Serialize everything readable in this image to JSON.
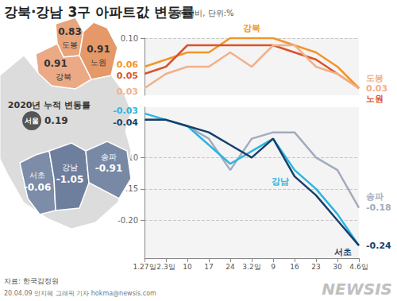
{
  "header": {
    "title": "강북·강남 3구 아파트값 변동률",
    "subtitle": "전주 대비, 단위:%"
  },
  "map": {
    "title": "2020년 누적 변동률",
    "city": {
      "name": "서울",
      "value": 0.19
    },
    "regions": [
      {
        "name": "도봉",
        "value": 0.83,
        "color": "#e9a47c"
      },
      {
        "name": "노원",
        "value": 0.91,
        "color": "#e59868"
      },
      {
        "name": "강북",
        "value": 0.91,
        "color": "#eba985"
      },
      {
        "name": "서초",
        "value": -0.06,
        "color": "#7d8ca8"
      },
      {
        "name": "강남",
        "value": -1.05,
        "color": "#6e7f9e"
      },
      {
        "name": "송파",
        "value": -0.91,
        "color": "#7889a6"
      }
    ]
  },
  "chart_data": [
    {
      "type": "line",
      "categories": [
        "1.27일",
        "2.3일",
        "10",
        "17",
        "24",
        "3.2일",
        "9",
        "16",
        "23",
        "30",
        "4.6일"
      ],
      "ylim": [
        0.02,
        0.1
      ],
      "yticks": [
        {
          "value": 0.1,
          "label": "0.10"
        }
      ],
      "grid": true,
      "tick_labels": "y",
      "series": [
        {
          "name": "강북",
          "color": "#f0962a",
          "values": [
            0.06,
            0.07,
            0.08,
            0.08,
            0.1,
            0.1,
            0.1,
            0.09,
            0.08,
            0.06,
            0.03
          ],
          "value_labels": [
            "0.06",
            null,
            null,
            null,
            null,
            null,
            null,
            null,
            null,
            null,
            null
          ]
        },
        {
          "name": "노원",
          "color": "#d9532a",
          "values": [
            0.05,
            0.06,
            0.09,
            0.09,
            0.09,
            0.09,
            0.09,
            0.08,
            0.07,
            0.05,
            0.03
          ],
          "value_labels": [
            "0.05",
            null,
            null,
            null,
            null,
            null,
            null,
            null,
            null,
            null,
            null
          ]
        },
        {
          "name": "도봉",
          "color": "#f2b08a",
          "values": [
            0.03,
            0.05,
            0.06,
            0.06,
            0.08,
            0.06,
            0.09,
            0.09,
            0.06,
            0.05,
            0.03
          ],
          "value_labels": [
            "0.03",
            null,
            null,
            null,
            null,
            null,
            null,
            null,
            null,
            null,
            "0.03"
          ]
        }
      ]
    },
    {
      "type": "line",
      "categories": [
        "1.27일",
        "2.3일",
        "10",
        "17",
        "24",
        "3.2일",
        "9",
        "16",
        "23",
        "30",
        "4.6일"
      ],
      "ylim": [
        -0.26,
        -0.02
      ],
      "yticks": [
        {
          "value": -0.2,
          "label": "-0.20"
        },
        -0.15,
        {
          "value": -0.1,
          "label": "-0.10"
        }
      ],
      "grid": true,
      "series": [
        {
          "name": "송파",
          "color": "#a3abbd",
          "values": [
            -0.04,
            -0.04,
            -0.05,
            -0.07,
            -0.12,
            -0.07,
            -0.06,
            -0.06,
            -0.1,
            -0.12,
            -0.18
          ],
          "value_labels": [
            null,
            null,
            null,
            null,
            null,
            null,
            null,
            null,
            null,
            null,
            "-0.18"
          ]
        },
        {
          "name": "강남",
          "color": "#2cb5e0",
          "values": [
            -0.03,
            -0.04,
            -0.05,
            -0.08,
            -0.11,
            -0.09,
            -0.07,
            -0.12,
            -0.15,
            -0.19,
            -0.24
          ],
          "value_labels": [
            "-0.03",
            null,
            null,
            null,
            null,
            null,
            null,
            null,
            null,
            null,
            null
          ]
        },
        {
          "name": "서초",
          "color": "#173f6b",
          "values": [
            -0.04,
            -0.04,
            -0.05,
            -0.06,
            -0.08,
            -0.1,
            -0.07,
            -0.13,
            -0.16,
            -0.2,
            -0.24
          ],
          "value_labels": [
            "-0.04",
            null,
            null,
            null,
            null,
            null,
            null,
            null,
            null,
            null,
            "-0.24"
          ]
        }
      ]
    }
  ],
  "footer": {
    "source": "자료: 한국감정원",
    "credit": "20.04.09 안지혜 그래픽 기자 hokma@newsis.com",
    "logo": "NEWSIS"
  }
}
